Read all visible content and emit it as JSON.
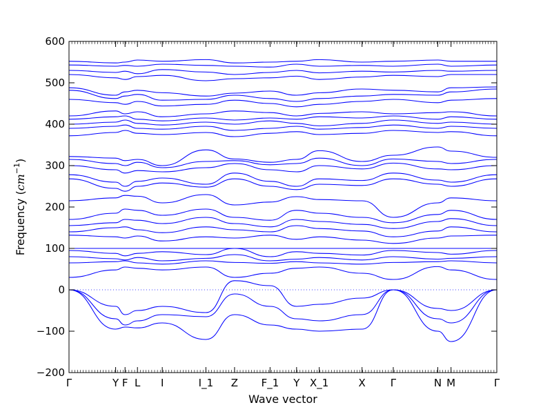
{
  "chart_data": {
    "type": "line",
    "title": "",
    "xlabel": "Wave vector",
    "ylabel": "Frequency",
    "ylabel_unit": "cm",
    "ylabel_unit_exponent": "−1",
    "ylim": [
      -200,
      600
    ],
    "yticks": [
      -200,
      -100,
      0,
      100,
      200,
      300,
      400,
      500,
      600
    ],
    "ytick_labels": [
      "−200",
      "−100",
      "0",
      "100",
      "200",
      "300",
      "400",
      "500",
      "600"
    ],
    "high_symmetry_points": [
      "Γ",
      "Y",
      "F",
      "L",
      "I",
      "I_1",
      "Z",
      "F_1",
      "Y",
      "X_1",
      "X",
      "Γ",
      "N",
      "M",
      "Γ"
    ],
    "x_positions": [
      0,
      0.109,
      0.131,
      0.16,
      0.218,
      0.32,
      0.387,
      0.47,
      0.532,
      0.585,
      0.685,
      0.758,
      0.862,
      0.893,
      1.0
    ],
    "zero_line": true,
    "grid": false,
    "line_color": "#0000ff",
    "series": [
      {
        "values": [
          552,
          548,
          550,
          555,
          552,
          556,
          548,
          550,
          552,
          556,
          550,
          552,
          555,
          552,
          552
        ]
      },
      {
        "values": [
          543,
          540,
          542,
          540,
          545,
          542,
          540,
          538,
          545,
          540,
          542,
          540,
          545,
          540,
          543
        ]
      },
      {
        "values": [
          530,
          525,
          528,
          522,
          532,
          526,
          520,
          525,
          530,
          524,
          528,
          526,
          530,
          528,
          530
        ]
      },
      {
        "values": [
          520,
          512,
          508,
          515,
          518,
          505,
          510,
          512,
          516,
          508,
          514,
          518,
          515,
          520,
          520
        ]
      },
      {
        "values": [
          488,
          470,
          478,
          482,
          476,
          468,
          475,
          480,
          470,
          476,
          485,
          482,
          478,
          488,
          490
        ]
      },
      {
        "values": [
          482,
          462,
          468,
          472,
          458,
          460,
          470,
          462,
          455,
          462,
          468,
          472,
          470,
          478,
          485
        ]
      },
      {
        "values": [
          460,
          452,
          448,
          455,
          444,
          448,
          458,
          450,
          442,
          448,
          455,
          460,
          452,
          458,
          462
        ]
      },
      {
        "values": [
          420,
          432,
          425,
          430,
          418,
          425,
          432,
          428,
          420,
          426,
          430,
          425,
          428,
          430,
          420
        ]
      },
      {
        "values": [
          412,
          418,
          420,
          412,
          408,
          415,
          410,
          415,
          412,
          418,
          415,
          420,
          412,
          418,
          412
        ]
      },
      {
        "values": [
          400,
          405,
          410,
          402,
          398,
          405,
          400,
          408,
          402,
          396,
          402,
          410,
          402,
          405,
          400
        ]
      },
      {
        "values": [
          390,
          395,
          398,
          390,
          388,
          395,
          385,
          390,
          395,
          388,
          392,
          398,
          390,
          395,
          390
        ]
      },
      {
        "values": [
          372,
          380,
          385,
          378,
          375,
          380,
          370,
          378,
          382,
          375,
          378,
          385,
          380,
          382,
          372
        ]
      },
      {
        "values": [
          322,
          318,
          312,
          315,
          300,
          338,
          316,
          308,
          315,
          336,
          310,
          325,
          345,
          335,
          320
        ]
      },
      {
        "values": [
          315,
          305,
          300,
          308,
          295,
          310,
          312,
          302,
          305,
          318,
          300,
          316,
          310,
          305,
          315
        ]
      },
      {
        "values": [
          300,
          290,
          282,
          288,
          285,
          295,
          305,
          290,
          285,
          300,
          292,
          306,
          292,
          290,
          300
        ]
      },
      {
        "values": [
          278,
          260,
          250,
          262,
          270,
          255,
          282,
          262,
          250,
          268,
          264,
          282,
          265,
          260,
          278
        ]
      },
      {
        "values": [
          268,
          245,
          238,
          250,
          258,
          248,
          268,
          250,
          242,
          255,
          252,
          268,
          255,
          250,
          268
        ]
      },
      {
        "values": [
          215,
          222,
          228,
          226,
          210,
          230,
          205,
          212,
          225,
          218,
          215,
          175,
          210,
          222,
          215
        ]
      },
      {
        "values": [
          170,
          185,
          195,
          192,
          180,
          195,
          175,
          168,
          192,
          185,
          175,
          162,
          182,
          192,
          170
        ]
      },
      {
        "values": [
          155,
          162,
          170,
          168,
          160,
          175,
          160,
          152,
          170,
          165,
          158,
          148,
          165,
          172,
          155
        ]
      },
      {
        "values": [
          140,
          150,
          152,
          145,
          138,
          152,
          145,
          140,
          155,
          148,
          142,
          128,
          142,
          152,
          140
        ]
      },
      {
        "values": [
          132,
          128,
          125,
          130,
          118,
          128,
          125,
          132,
          122,
          128,
          120,
          112,
          125,
          130,
          132
        ]
      },
      {
        "values": [
          100,
          100,
          100,
          100,
          100,
          100,
          100,
          100,
          100,
          100,
          100,
          100,
          100,
          100,
          100
        ]
      },
      {
        "values": [
          95,
          88,
          82,
          88,
          92,
          85,
          100,
          80,
          92,
          88,
          84,
          95,
          90,
          86,
          95
        ]
      },
      {
        "values": [
          80,
          75,
          72,
          78,
          70,
          76,
          85,
          70,
          74,
          78,
          72,
          80,
          74,
          76,
          80
        ]
      },
      {
        "values": [
          65,
          68,
          70,
          65,
          62,
          70,
          66,
          64,
          68,
          65,
          62,
          66,
          68,
          70,
          65
        ]
      },
      {
        "values": [
          30,
          48,
          55,
          52,
          48,
          55,
          30,
          40,
          52,
          55,
          40,
          25,
          56,
          48,
          25
        ]
      },
      {
        "values": [
          0,
          -40,
          -60,
          -50,
          -40,
          -55,
          22,
          10,
          -40,
          -35,
          -20,
          0,
          -45,
          -50,
          0
        ]
      },
      {
        "values": [
          0,
          -70,
          -85,
          -75,
          -60,
          -65,
          -10,
          -40,
          -70,
          -75,
          -60,
          0,
          -70,
          -80,
          0
        ]
      },
      {
        "values": [
          0,
          -95,
          -90,
          -92,
          -80,
          -120,
          -60,
          -85,
          -95,
          -100,
          -95,
          0,
          -100,
          -125,
          0
        ]
      }
    ]
  }
}
